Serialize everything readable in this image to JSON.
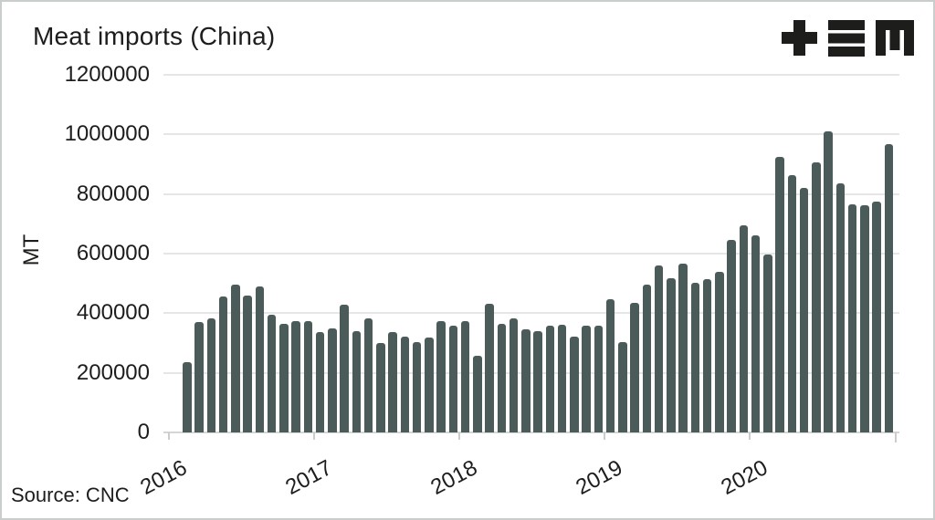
{
  "header": {
    "title": "Meat imports (China)"
  },
  "branding": {
    "logo_name": "plus-bars-m-logo",
    "logo_color": "#1d1d1b"
  },
  "footer": {
    "source_text": "Source: CNC"
  },
  "chart_data": {
    "type": "bar",
    "title": "Meat imports (China)",
    "xlabel": "",
    "ylabel": "MT",
    "ylim": [
      0,
      1200000
    ],
    "yticks": [
      0,
      200000,
      400000,
      600000,
      800000,
      1000000,
      1200000
    ],
    "grid": true,
    "legend_position": "none",
    "bar_color": "#4a5b5a",
    "grid_color": "#e5e6e6",
    "axis_color": "#d2d6d5",
    "x_tick_labels": [
      "2016",
      "2017",
      "2018",
      "2019",
      "2020"
    ],
    "x": [
      "2016-02",
      "2016-03",
      "2016-04",
      "2016-05",
      "2016-06",
      "2016-07",
      "2016-08",
      "2016-09",
      "2016-10",
      "2016-11",
      "2016-12",
      "2017-01",
      "2017-02",
      "2017-03",
      "2017-04",
      "2017-05",
      "2017-06",
      "2017-07",
      "2017-08",
      "2017-09",
      "2017-10",
      "2017-11",
      "2017-12",
      "2018-01",
      "2018-02",
      "2018-03",
      "2018-04",
      "2018-05",
      "2018-06",
      "2018-07",
      "2018-08",
      "2018-09",
      "2018-10",
      "2018-11",
      "2018-12",
      "2019-01",
      "2019-02",
      "2019-03",
      "2019-04",
      "2019-05",
      "2019-06",
      "2019-07",
      "2019-08",
      "2019-09",
      "2019-10",
      "2019-11",
      "2019-12",
      "2020-01",
      "2020-02",
      "2020-03",
      "2020-04",
      "2020-05",
      "2020-06",
      "2020-07",
      "2020-08",
      "2020-09",
      "2020-10",
      "2020-11",
      "2020-12"
    ],
    "values": [
      235000,
      370000,
      383000,
      456000,
      495000,
      460000,
      489000,
      395000,
      365000,
      375000,
      372000,
      336000,
      350000,
      430000,
      339000,
      383000,
      299000,
      336000,
      322000,
      304000,
      319000,
      375000,
      359000,
      375000,
      257000,
      433000,
      365000,
      384000,
      347000,
      339000,
      357000,
      360000,
      321000,
      357000,
      359000,
      448000,
      304000,
      436000,
      497000,
      560000,
      517000,
      566000,
      502000,
      515000,
      538000,
      645000,
      695000,
      660000,
      598000,
      923000,
      864000,
      821000,
      905000,
      1009000,
      835000,
      764000,
      762000,
      774000,
      966000
    ]
  }
}
